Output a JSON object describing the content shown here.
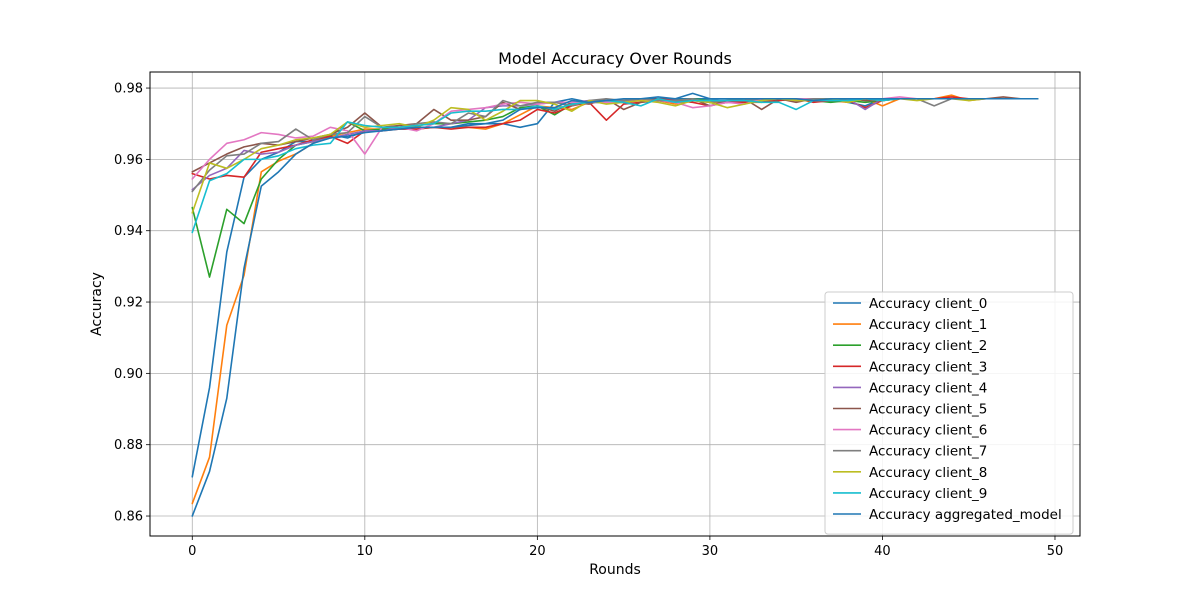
{
  "chart_data": {
    "type": "line",
    "title": "Model Accuracy Over Rounds",
    "xlabel": "Rounds",
    "ylabel": "Accuracy",
    "xlim": [
      -2.45,
      51.45
    ],
    "ylim": [
      0.8544,
      0.9845
    ],
    "xticks": [
      0,
      10,
      20,
      30,
      40,
      50
    ],
    "yticks": [
      0.86,
      0.88,
      0.9,
      0.92,
      0.94,
      0.96,
      0.98
    ],
    "ytick_labels": [
      "0.86",
      "0.88",
      "0.90",
      "0.92",
      "0.94",
      "0.96",
      "0.98"
    ],
    "grid": true,
    "legend_position": "lower-right",
    "x": [
      0,
      1,
      2,
      3,
      4,
      5,
      6,
      7,
      8,
      9,
      10,
      11,
      12,
      13,
      14,
      15,
      16,
      17,
      18,
      19,
      20,
      21,
      22,
      23,
      24,
      25,
      26,
      27,
      28,
      29,
      30,
      31,
      32,
      33,
      34,
      35,
      36,
      37,
      38,
      39,
      40,
      41,
      42,
      43,
      44,
      45,
      46,
      47,
      48,
      49
    ],
    "series": [
      {
        "name": "Accuracy client_0",
        "color": "#1f77b4",
        "values": [
          0.871,
          0.896,
          0.934,
          0.955,
          0.96,
          0.962,
          0.965,
          0.965,
          0.967,
          0.966,
          0.968,
          0.968,
          0.969,
          0.969,
          0.969,
          0.969,
          0.97,
          0.97,
          0.97,
          0.969,
          0.97,
          0.976,
          0.977,
          0.976,
          0.976,
          0.976,
          0.977,
          0.977,
          0.977,
          0.977,
          0.977,
          0.976,
          0.977,
          0.977,
          0.977,
          0.977,
          0.977,
          0.977,
          0.976,
          0.975,
          0.977,
          0.977,
          0.977,
          0.977,
          0.977,
          0.977,
          0.977,
          0.977,
          0.977,
          0.977
        ]
      },
      {
        "name": "Accuracy client_1",
        "color": "#ff7f0e",
        "values": [
          0.8635,
          0.8765,
          0.9135,
          0.9275,
          0.9565,
          0.9595,
          0.9615,
          0.9645,
          0.9665,
          0.9675,
          0.9685,
          0.9685,
          0.9685,
          0.9685,
          0.969,
          0.969,
          0.969,
          0.9685,
          0.97,
          0.9725,
          0.975,
          0.9745,
          0.974,
          0.976,
          0.976,
          0.9765,
          0.9765,
          0.9765,
          0.9755,
          0.9765,
          0.976,
          0.976,
          0.976,
          0.976,
          0.977,
          0.977,
          0.9765,
          0.9765,
          0.976,
          0.977,
          0.975,
          0.977,
          0.977,
          0.977,
          0.978,
          0.9765,
          0.977,
          0.977,
          0.977,
          0.977
        ]
      },
      {
        "name": "Accuracy client_2",
        "color": "#2ca02c",
        "values": [
          0.9465,
          0.927,
          0.946,
          0.942,
          0.9545,
          0.96,
          0.964,
          0.965,
          0.9665,
          0.9705,
          0.968,
          0.9685,
          0.969,
          0.9695,
          0.97,
          0.97,
          0.9705,
          0.971,
          0.972,
          0.9745,
          0.975,
          0.9725,
          0.9755,
          0.976,
          0.976,
          0.976,
          0.977,
          0.9765,
          0.9765,
          0.977,
          0.9765,
          0.976,
          0.9765,
          0.9765,
          0.9765,
          0.977,
          0.9765,
          0.976,
          0.9765,
          0.976,
          0.9765,
          0.977,
          0.977,
          0.977,
          0.977,
          0.977,
          0.977,
          0.977,
          0.977,
          0.977
        ]
      },
      {
        "name": "Accuracy client_3",
        "color": "#d62728",
        "values": [
          0.956,
          0.9545,
          0.9555,
          0.955,
          0.962,
          0.963,
          0.964,
          0.9655,
          0.9665,
          0.9645,
          0.968,
          0.968,
          0.9685,
          0.9685,
          0.969,
          0.9685,
          0.969,
          0.969,
          0.97,
          0.971,
          0.974,
          0.973,
          0.975,
          0.976,
          0.971,
          0.9755,
          0.976,
          0.977,
          0.9765,
          0.976,
          0.975,
          0.976,
          0.976,
          0.9765,
          0.9765,
          0.977,
          0.976,
          0.9765,
          0.9765,
          0.9745,
          0.9765,
          0.977,
          0.977,
          0.977,
          0.9775,
          0.977,
          0.977,
          0.977,
          0.977,
          0.977
        ]
      },
      {
        "name": "Accuracy client_4",
        "color": "#9467bd",
        "values": [
          0.9515,
          0.9555,
          0.9575,
          0.9625,
          0.9615,
          0.962,
          0.964,
          0.965,
          0.966,
          0.967,
          0.968,
          0.968,
          0.969,
          0.969,
          0.969,
          0.97,
          0.971,
          0.9745,
          0.975,
          0.975,
          0.9755,
          0.976,
          0.976,
          0.9765,
          0.9765,
          0.9765,
          0.9765,
          0.9765,
          0.9765,
          0.9765,
          0.9765,
          0.9765,
          0.9765,
          0.9765,
          0.977,
          0.977,
          0.9765,
          0.977,
          0.977,
          0.974,
          0.977,
          0.977,
          0.977,
          0.977,
          0.977,
          0.977,
          0.977,
          0.977,
          0.977,
          0.977
        ]
      },
      {
        "name": "Accuracy client_5",
        "color": "#8c564b",
        "values": [
          0.9565,
          0.959,
          0.9615,
          0.9635,
          0.9645,
          0.964,
          0.965,
          0.966,
          0.967,
          0.969,
          0.973,
          0.969,
          0.9695,
          0.97,
          0.974,
          0.971,
          0.971,
          0.972,
          0.976,
          0.974,
          0.975,
          0.9735,
          0.976,
          0.9755,
          0.977,
          0.974,
          0.976,
          0.9765,
          0.976,
          0.977,
          0.975,
          0.9765,
          0.977,
          0.974,
          0.977,
          0.976,
          0.977,
          0.9765,
          0.977,
          0.9765,
          0.9765,
          0.977,
          0.977,
          0.977,
          0.977,
          0.977,
          0.977,
          0.9775,
          0.977,
          0.977
        ]
      },
      {
        "name": "Accuracy client_6",
        "color": "#e377c2",
        "values": [
          0.9545,
          0.96,
          0.9645,
          0.9655,
          0.9675,
          0.967,
          0.966,
          0.9665,
          0.969,
          0.968,
          0.9615,
          0.969,
          0.969,
          0.968,
          0.97,
          0.9735,
          0.974,
          0.9745,
          0.9755,
          0.976,
          0.9755,
          0.976,
          0.976,
          0.976,
          0.976,
          0.976,
          0.9765,
          0.9765,
          0.976,
          0.9745,
          0.975,
          0.976,
          0.9755,
          0.977,
          0.977,
          0.977,
          0.977,
          0.977,
          0.9765,
          0.977,
          0.977,
          0.9775,
          0.977,
          0.977,
          0.977,
          0.977,
          0.977,
          0.977,
          0.977,
          0.977
        ]
      },
      {
        "name": "Accuracy client_7",
        "color": "#7f7f7f",
        "values": [
          0.951,
          0.957,
          0.961,
          0.9615,
          0.9645,
          0.965,
          0.9685,
          0.9655,
          0.967,
          0.9675,
          0.972,
          0.969,
          0.969,
          0.97,
          0.9705,
          0.97,
          0.973,
          0.972,
          0.9765,
          0.975,
          0.976,
          0.976,
          0.975,
          0.9765,
          0.977,
          0.9765,
          0.977,
          0.9765,
          0.9765,
          0.977,
          0.976,
          0.9765,
          0.9765,
          0.977,
          0.977,
          0.9765,
          0.977,
          0.977,
          0.9765,
          0.977,
          0.977,
          0.977,
          0.977,
          0.975,
          0.977,
          0.977,
          0.977,
          0.977,
          0.977,
          0.977
        ]
      },
      {
        "name": "Accuracy client_8",
        "color": "#bcbd22",
        "values": [
          0.945,
          0.959,
          0.9575,
          0.96,
          0.963,
          0.964,
          0.9655,
          0.966,
          0.967,
          0.9705,
          0.969,
          0.9695,
          0.97,
          0.969,
          0.971,
          0.9745,
          0.974,
          0.971,
          0.9735,
          0.9765,
          0.9765,
          0.9755,
          0.9735,
          0.9765,
          0.9755,
          0.976,
          0.9765,
          0.976,
          0.975,
          0.9765,
          0.976,
          0.9745,
          0.9755,
          0.9765,
          0.977,
          0.9765,
          0.9765,
          0.977,
          0.976,
          0.977,
          0.9765,
          0.977,
          0.9765,
          0.977,
          0.977,
          0.9765,
          0.977,
          0.977,
          0.977,
          0.977
        ]
      },
      {
        "name": "Accuracy client_9",
        "color": "#17becf",
        "values": [
          0.9395,
          0.954,
          0.956,
          0.96,
          0.96,
          0.961,
          0.963,
          0.964,
          0.9645,
          0.9705,
          0.9695,
          0.969,
          0.969,
          0.9695,
          0.97,
          0.973,
          0.9735,
          0.9735,
          0.974,
          0.974,
          0.975,
          0.974,
          0.9755,
          0.976,
          0.9765,
          0.976,
          0.975,
          0.977,
          0.976,
          0.9765,
          0.9765,
          0.9765,
          0.9765,
          0.976,
          0.976,
          0.974,
          0.9765,
          0.9765,
          0.9765,
          0.977,
          0.9765,
          0.977,
          0.977,
          0.977,
          0.977,
          0.977,
          0.977,
          0.977,
          0.977,
          0.977
        ]
      },
      {
        "name": "Accuracy aggregated_model",
        "color": "#1f77b4",
        "values": [
          0.86,
          0.8725,
          0.893,
          0.9295,
          0.9525,
          0.9565,
          0.9615,
          0.9645,
          0.966,
          0.9665,
          0.9675,
          0.968,
          0.9685,
          0.969,
          0.969,
          0.969,
          0.9695,
          0.97,
          0.971,
          0.974,
          0.9745,
          0.9745,
          0.9765,
          0.976,
          0.9765,
          0.977,
          0.977,
          0.9775,
          0.977,
          0.9785,
          0.977,
          0.977,
          0.977,
          0.977,
          0.977,
          0.977,
          0.9765,
          0.977,
          0.977,
          0.977,
          0.977,
          0.977,
          0.977,
          0.977,
          0.977,
          0.977,
          0.977,
          0.977,
          0.977,
          0.977
        ]
      }
    ]
  }
}
